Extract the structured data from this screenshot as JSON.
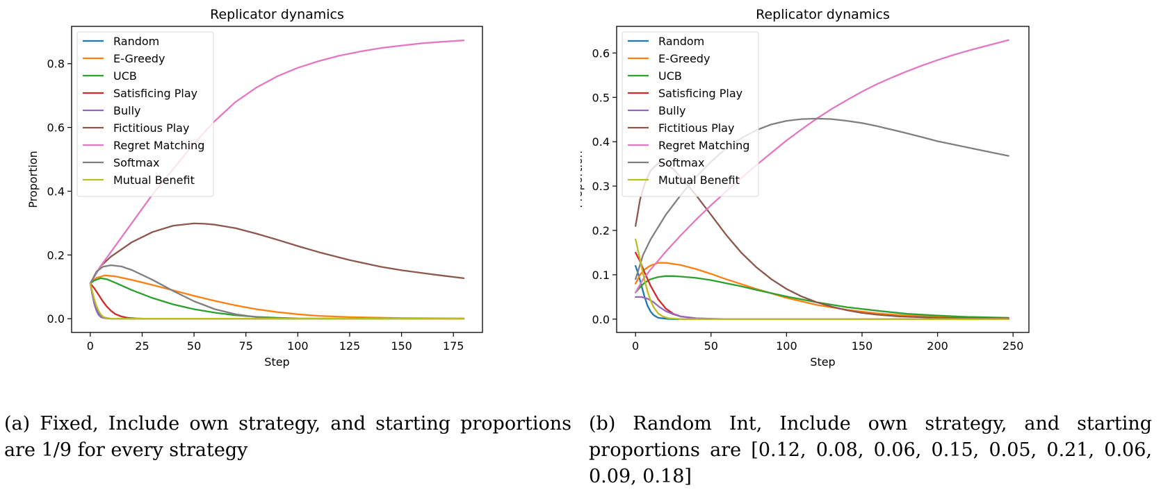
{
  "chart_data": [
    {
      "type": "line",
      "title": "Replicator dynamics",
      "xlabel": "Step",
      "ylabel": "Proportion",
      "xlim": [
        -9,
        189
      ],
      "ylim": [
        -0.043,
        0.917
      ],
      "xticks": [
        0,
        25,
        50,
        75,
        100,
        125,
        150,
        175
      ],
      "yticks": [
        0.0,
        0.2,
        0.4,
        0.6,
        0.8
      ],
      "ytick_labels": [
        "0.0",
        "0.2",
        "0.4",
        "0.6",
        "0.8"
      ],
      "grid": false,
      "legend": "top-left",
      "series": [
        {
          "name": "Random",
          "color": "#1f77b4",
          "x": [
            0,
            1,
            2,
            3,
            4,
            5,
            6,
            8,
            10,
            15,
            20,
            180
          ],
          "y": [
            0.111,
            0.08,
            0.055,
            0.035,
            0.02,
            0.01,
            0.005,
            0.002,
            0.0,
            0.0,
            0.0,
            0.0
          ]
        },
        {
          "name": "E-Greedy",
          "color": "#ff7f0e",
          "x": [
            0,
            3,
            7,
            12,
            20,
            30,
            40,
            50,
            60,
            70,
            80,
            90,
            100,
            110,
            125,
            150,
            180
          ],
          "y": [
            0.111,
            0.128,
            0.136,
            0.133,
            0.122,
            0.106,
            0.089,
            0.072,
            0.056,
            0.042,
            0.03,
            0.021,
            0.014,
            0.009,
            0.005,
            0.002,
            0.001
          ]
        },
        {
          "name": "UCB",
          "color": "#2ca02c",
          "x": [
            0,
            2,
            5,
            8,
            12,
            20,
            30,
            40,
            50,
            60,
            70,
            80,
            90,
            100,
            125,
            180
          ],
          "y": [
            0.111,
            0.12,
            0.127,
            0.124,
            0.113,
            0.09,
            0.065,
            0.045,
            0.03,
            0.019,
            0.011,
            0.006,
            0.003,
            0.001,
            0.0,
            0.0
          ]
        },
        {
          "name": "Satisficing Play",
          "color": "#d62728",
          "x": [
            0,
            2,
            4,
            6,
            8,
            10,
            12,
            15,
            18,
            22,
            26,
            30,
            180
          ],
          "y": [
            0.111,
            0.095,
            0.075,
            0.055,
            0.038,
            0.025,
            0.015,
            0.007,
            0.003,
            0.001,
            0.0,
            0.0,
            0.0
          ]
        },
        {
          "name": "Bully",
          "color": "#9467bd",
          "x": [
            0,
            1,
            2,
            3,
            4,
            5,
            6,
            8,
            10,
            15,
            180
          ],
          "y": [
            0.111,
            0.075,
            0.045,
            0.025,
            0.012,
            0.006,
            0.003,
            0.001,
            0.0,
            0.0,
            0.0
          ]
        },
        {
          "name": "Fictitious Play",
          "color": "#8c564b",
          "x": [
            0,
            5,
            10,
            20,
            30,
            40,
            50,
            55,
            60,
            70,
            80,
            90,
            100,
            110,
            125,
            140,
            150,
            165,
            180
          ],
          "y": [
            0.111,
            0.165,
            0.195,
            0.24,
            0.272,
            0.292,
            0.299,
            0.298,
            0.295,
            0.284,
            0.267,
            0.248,
            0.228,
            0.209,
            0.184,
            0.163,
            0.152,
            0.139,
            0.127
          ]
        },
        {
          "name": "Regret Matching",
          "color": "#e377c2",
          "x": [
            0,
            5,
            10,
            20,
            30,
            40,
            50,
            60,
            70,
            80,
            90,
            100,
            110,
            120,
            130,
            140,
            150,
            160,
            170,
            180
          ],
          "y": [
            0.111,
            0.165,
            0.21,
            0.3,
            0.39,
            0.47,
            0.55,
            0.62,
            0.68,
            0.725,
            0.76,
            0.787,
            0.808,
            0.825,
            0.838,
            0.849,
            0.857,
            0.864,
            0.869,
            0.873
          ]
        },
        {
          "name": "Softmax",
          "color": "#7f7f7f",
          "x": [
            0,
            3,
            6,
            10,
            15,
            20,
            30,
            40,
            50,
            60,
            70,
            80,
            90,
            100,
            180
          ],
          "y": [
            0.111,
            0.148,
            0.163,
            0.168,
            0.164,
            0.153,
            0.122,
            0.087,
            0.055,
            0.03,
            0.014,
            0.005,
            0.001,
            0.0,
            0.0
          ]
        },
        {
          "name": "Mutual Benefit",
          "color": "#bcbd22",
          "x": [
            0,
            1,
            2,
            3,
            4,
            5,
            6,
            7,
            8,
            10,
            15,
            180
          ],
          "y": [
            0.111,
            0.085,
            0.06,
            0.04,
            0.025,
            0.014,
            0.007,
            0.004,
            0.002,
            0.0,
            0.0,
            0.0
          ]
        }
      ]
    },
    {
      "type": "line",
      "title": "Replicator dynamics",
      "xlabel": "Step",
      "ylabel": "Proportion",
      "xlim": [
        -12.5,
        260.5
      ],
      "ylim": [
        -0.03,
        0.66
      ],
      "xticks": [
        0,
        50,
        100,
        150,
        200,
        250
      ],
      "yticks": [
        0.0,
        0.1,
        0.2,
        0.3,
        0.4,
        0.5,
        0.6
      ],
      "ytick_labels": [
        "0.0",
        "0.1",
        "0.2",
        "0.3",
        "0.4",
        "0.5",
        "0.6"
      ],
      "grid": false,
      "legend": "top-left",
      "series": [
        {
          "name": "Random",
          "color": "#1f77b4",
          "x": [
            0,
            2,
            4,
            6,
            8,
            10,
            12,
            15,
            20,
            25,
            247
          ],
          "y": [
            0.12,
            0.1,
            0.075,
            0.05,
            0.03,
            0.017,
            0.009,
            0.003,
            0.001,
            0.0,
            0.0
          ]
        },
        {
          "name": "E-Greedy",
          "color": "#ff7f0e",
          "x": [
            0,
            3,
            6,
            10,
            15,
            20,
            30,
            40,
            50,
            60,
            70,
            80,
            100,
            120,
            140,
            160,
            180,
            200,
            220,
            247
          ],
          "y": [
            0.08,
            0.1,
            0.112,
            0.121,
            0.127,
            0.127,
            0.122,
            0.113,
            0.102,
            0.09,
            0.079,
            0.068,
            0.048,
            0.032,
            0.021,
            0.013,
            0.008,
            0.005,
            0.003,
            0.001
          ]
        },
        {
          "name": "UCB",
          "color": "#2ca02c",
          "x": [
            0,
            3,
            6,
            10,
            15,
            20,
            25,
            30,
            40,
            50,
            60,
            70,
            80,
            100,
            120,
            140,
            160,
            180,
            200,
            220,
            247
          ],
          "y": [
            0.06,
            0.072,
            0.082,
            0.09,
            0.095,
            0.097,
            0.097,
            0.096,
            0.093,
            0.088,
            0.081,
            0.074,
            0.066,
            0.051,
            0.038,
            0.027,
            0.019,
            0.012,
            0.008,
            0.005,
            0.003
          ]
        },
        {
          "name": "Satisficing Play",
          "color": "#d62728",
          "x": [
            0,
            3,
            6,
            10,
            15,
            20,
            25,
            30,
            40,
            50,
            247
          ],
          "y": [
            0.15,
            0.13,
            0.105,
            0.075,
            0.045,
            0.024,
            0.012,
            0.006,
            0.002,
            0.0,
            0.0
          ]
        },
        {
          "name": "Bully",
          "color": "#9467bd",
          "x": [
            0,
            4,
            8,
            12,
            16,
            20,
            25,
            30,
            40,
            50,
            60,
            70,
            247
          ],
          "y": [
            0.05,
            0.05,
            0.046,
            0.038,
            0.027,
            0.018,
            0.011,
            0.006,
            0.002,
            0.001,
            0.0,
            0.0,
            0.0
          ]
        },
        {
          "name": "Fictitious Play",
          "color": "#8c564b",
          "x": [
            0,
            3,
            6,
            10,
            15,
            20,
            25,
            30,
            40,
            50,
            60,
            70,
            80,
            90,
            100,
            110,
            120,
            130,
            140,
            150,
            160,
            175,
            200,
            247
          ],
          "y": [
            0.21,
            0.27,
            0.305,
            0.335,
            0.352,
            0.35,
            0.338,
            0.32,
            0.28,
            0.235,
            0.19,
            0.15,
            0.117,
            0.09,
            0.068,
            0.051,
            0.038,
            0.028,
            0.02,
            0.014,
            0.01,
            0.006,
            0.003,
            0.001
          ]
        },
        {
          "name": "Regret Matching",
          "color": "#e377c2",
          "x": [
            0,
            5,
            10,
            20,
            30,
            40,
            50,
            60,
            70,
            80,
            90,
            100,
            110,
            120,
            130,
            140,
            150,
            160,
            170,
            180,
            190,
            200,
            210,
            220,
            230,
            247
          ],
          "y": [
            0.06,
            0.09,
            0.112,
            0.152,
            0.189,
            0.224,
            0.257,
            0.288,
            0.318,
            0.347,
            0.375,
            0.403,
            0.428,
            0.452,
            0.474,
            0.494,
            0.513,
            0.53,
            0.545,
            0.559,
            0.572,
            0.584,
            0.595,
            0.605,
            0.614,
            0.629
          ]
        },
        {
          "name": "Softmax",
          "color": "#7f7f7f",
          "x": [
            0,
            5,
            10,
            20,
            30,
            40,
            50,
            60,
            70,
            80,
            90,
            100,
            110,
            120,
            130,
            140,
            150,
            160,
            175,
            190,
            200,
            220,
            247
          ],
          "y": [
            0.09,
            0.145,
            0.18,
            0.235,
            0.28,
            0.32,
            0.355,
            0.385,
            0.408,
            0.426,
            0.439,
            0.447,
            0.451,
            0.452,
            0.451,
            0.447,
            0.442,
            0.435,
            0.423,
            0.41,
            0.401,
            0.387,
            0.368
          ]
        },
        {
          "name": "Mutual Benefit",
          "color": "#bcbd22",
          "x": [
            0,
            2,
            4,
            6,
            8,
            10,
            12,
            15,
            18,
            22,
            26,
            30,
            247
          ],
          "y": [
            0.18,
            0.15,
            0.118,
            0.088,
            0.062,
            0.042,
            0.027,
            0.013,
            0.006,
            0.002,
            0.001,
            0.0,
            0.0
          ]
        }
      ]
    }
  ],
  "captions": {
    "a": "(a) Fixed, Include own strategy, and starting proportions are 1/9 for every strategy",
    "b": "(b) Random Int, Include own strategy, and starting proportions are [0.12, 0.08, 0.06, 0.15, 0.05, 0.21, 0.06, 0.09, 0.18]"
  }
}
